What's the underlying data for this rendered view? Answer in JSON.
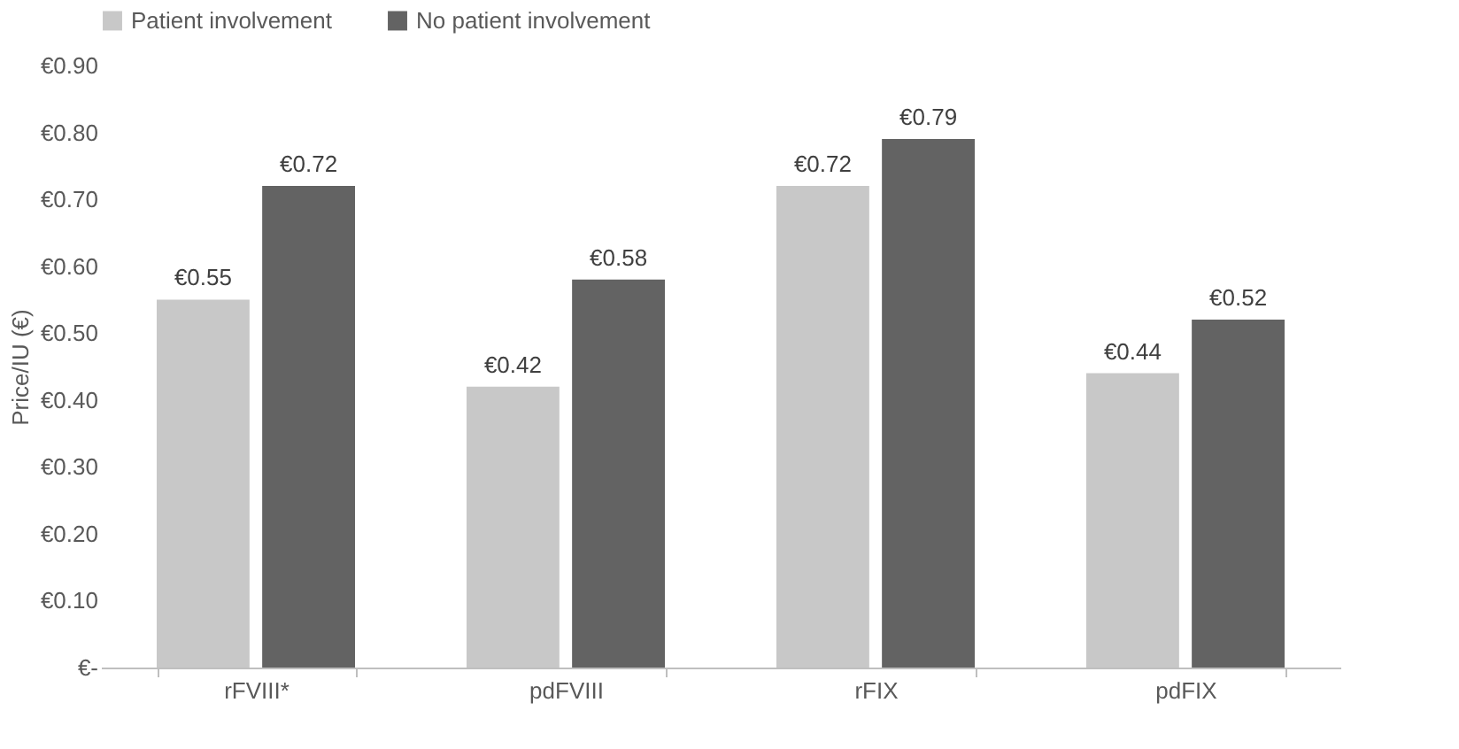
{
  "chart_data": {
    "type": "bar",
    "ylabel": "Price/IU (€)",
    "categories": [
      "rFVIII*",
      "pdFVIII",
      "rFIX",
      "pdFIX"
    ],
    "series": [
      {
        "name": "Patient involvement",
        "color": "#c8c8c8",
        "values": [
          0.55,
          0.42,
          0.72,
          0.44
        ],
        "value_labels": [
          "€0.55",
          "€0.42",
          "€0.72",
          "€0.44"
        ]
      },
      {
        "name": "No patient involvement",
        "color": "#636363",
        "values": [
          0.72,
          0.58,
          0.79,
          0.52
        ],
        "value_labels": [
          "€0.72",
          "€0.58",
          "€0.79",
          "€0.52"
        ]
      }
    ],
    "ylim": [
      0,
      0.9
    ],
    "yticks": [
      {
        "value": 0,
        "label": "€-"
      },
      {
        "value": 0.1,
        "label": "€0.10"
      },
      {
        "value": 0.2,
        "label": "€0.20"
      },
      {
        "value": 0.3,
        "label": "€0.30"
      },
      {
        "value": 0.4,
        "label": "€0.40"
      },
      {
        "value": 0.5,
        "label": "€0.50"
      },
      {
        "value": 0.6,
        "label": "€0.60"
      },
      {
        "value": 0.7,
        "label": "€0.70"
      },
      {
        "value": 0.8,
        "label": "€0.80"
      },
      {
        "value": 0.9,
        "label": "€0.90"
      }
    ],
    "grid": false,
    "legend": "top"
  }
}
